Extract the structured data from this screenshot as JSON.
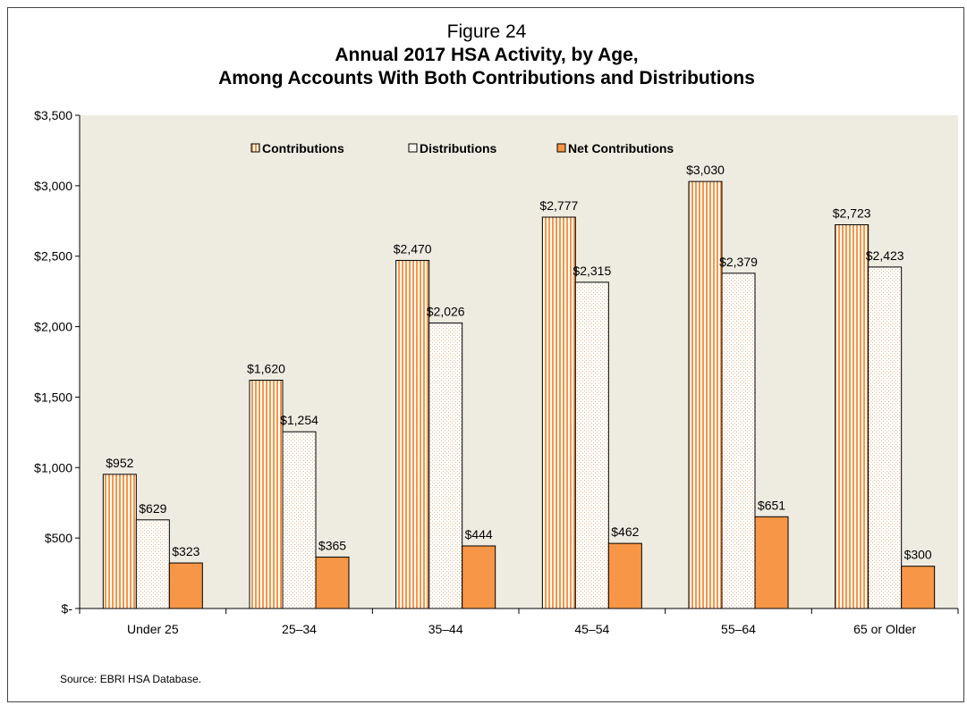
{
  "figure_label": "Figure 24",
  "title_line1": "Annual 2017 HSA Activity, by Age,",
  "title_line2": "Among Accounts With Both Contributions and Distributions",
  "source": "Source: EBRI HSA Database.",
  "colors": {
    "plot_background": "#EEECE1",
    "contributions_stripe": "#F79646",
    "distributions_dot": "#E8B58A",
    "net_contributions": "#F79646",
    "bar_outline": "#000000"
  },
  "chart_data": {
    "type": "bar",
    "title": "Annual 2017 HSA Activity, by Age, Among Accounts With Both Contributions and Distributions",
    "categories": [
      "Under 25",
      "25–34",
      "35–44",
      "45–54",
      "55–64",
      "65 or Older"
    ],
    "series": [
      {
        "name": "Contributions",
        "values": [
          952,
          1620,
          2470,
          2777,
          3030,
          2723
        ],
        "labels": [
          "$952",
          "$1,620",
          "$2,470",
          "$2,777",
          "$3,030",
          "$2,723"
        ],
        "fill": "vertical-stripes"
      },
      {
        "name": "Distributions",
        "values": [
          629,
          1254,
          2026,
          2315,
          2379,
          2423
        ],
        "labels": [
          "$629",
          "$1,254",
          "$2,026",
          "$2,315",
          "$2,379",
          "$2,423"
        ],
        "fill": "dots"
      },
      {
        "name": "Net Contributions",
        "values": [
          323,
          365,
          444,
          462,
          651,
          300
        ],
        "labels": [
          "$323",
          "$365",
          "$444",
          "$462",
          "$651",
          "$300"
        ],
        "fill": "solid"
      }
    ],
    "ylim": [
      0,
      3500
    ],
    "yticks": [
      0,
      500,
      1000,
      1500,
      2000,
      2500,
      3000,
      3500
    ],
    "ytick_labels": [
      "$-",
      "$500",
      "$1,000",
      "$1,500",
      "$2,000",
      "$2,500",
      "$3,000",
      "$3,500"
    ],
    "xlabel": "",
    "ylabel": "",
    "legend": "top-center, inside plot",
    "grid": false
  }
}
